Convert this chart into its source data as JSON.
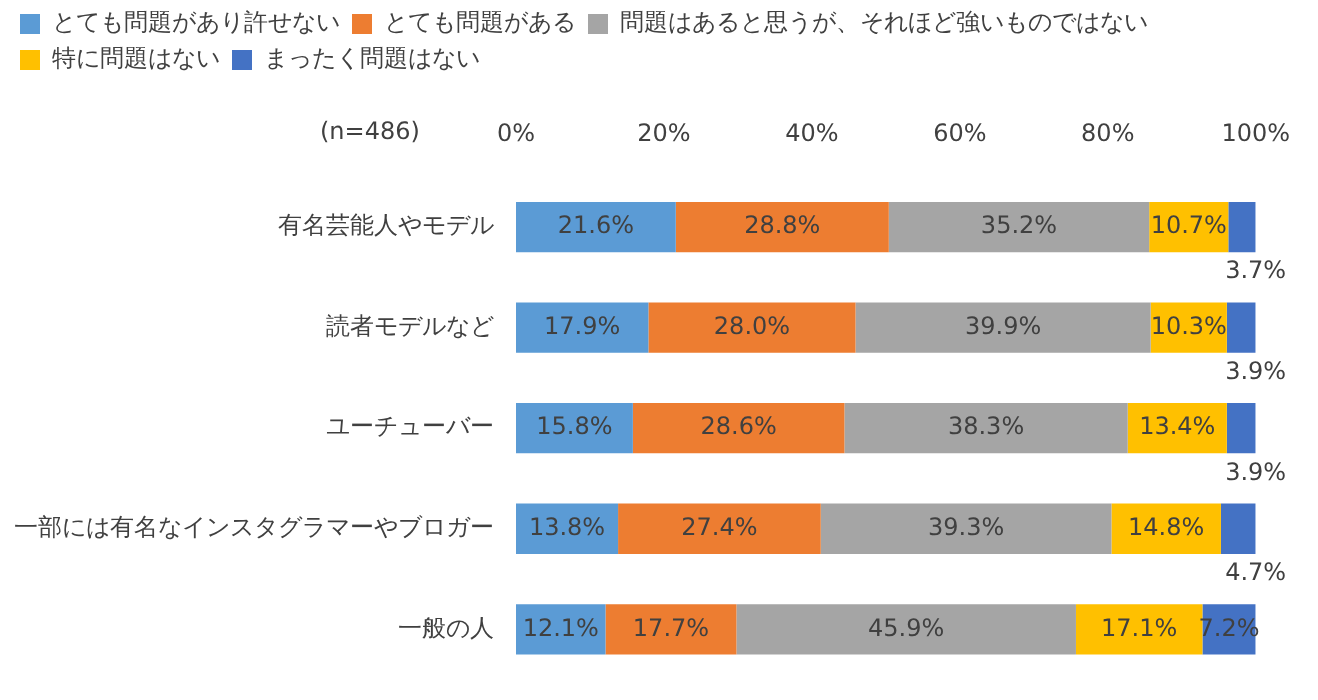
{
  "chart_data": {
    "type": "bar",
    "orientation": "horizontal",
    "stacked": true,
    "categories": [
      "有名芸能人やモデル",
      "読者モデルなど",
      "ユーチューバー",
      "一部には有名なインスタグラマーやブロガー",
      "一般の人"
    ],
    "series": [
      {
        "name": "とても問題があり許せない",
        "color": "#5b9bd5",
        "values": [
          21.6,
          17.9,
          15.8,
          13.8,
          12.1
        ],
        "value_labels": [
          "21.6%",
          "17.9%",
          "15.8%",
          "13.8%",
          "12.1%"
        ]
      },
      {
        "name": "とても問題がある",
        "color": "#ed7d31",
        "values": [
          28.8,
          28.0,
          28.6,
          27.4,
          17.7
        ],
        "value_labels": [
          "28.8%",
          "28.0%",
          "28.6%",
          "27.4%",
          "17.7%"
        ]
      },
      {
        "name": "問題はあると思うが、それほど強いものではない",
        "color": "#a5a5a5",
        "values": [
          35.2,
          39.9,
          38.3,
          39.3,
          45.9
        ],
        "value_labels": [
          "35.2%",
          "39.9%",
          "38.3%",
          "39.3%",
          "45.9%"
        ]
      },
      {
        "name": "特に問題はない",
        "color": "#ffc000",
        "values": [
          10.7,
          10.3,
          13.4,
          14.8,
          17.1
        ],
        "value_labels": [
          "10.7%",
          "10.3%",
          "13.4%",
          "14.8%",
          "17.1%"
        ]
      },
      {
        "name": "まったく問題はない",
        "color": "#4472c4",
        "values": [
          3.7,
          3.9,
          3.9,
          4.7,
          7.2
        ],
        "value_labels": [
          "3.7%",
          "3.9%",
          "3.9%",
          "4.7%",
          "7.2%"
        ]
      }
    ],
    "xlim": [
      0,
      100
    ],
    "xticks": [
      {
        "value": 0,
        "label": "0%"
      },
      {
        "value": 20,
        "label": "20%"
      },
      {
        "value": 40,
        "label": "40%"
      },
      {
        "value": 60,
        "label": "60%"
      },
      {
        "value": 80,
        "label": "80%"
      },
      {
        "value": 100,
        "label": "100%"
      }
    ],
    "legend": "top left",
    "grid": false,
    "annotations": [
      "(n=486)"
    ]
  }
}
